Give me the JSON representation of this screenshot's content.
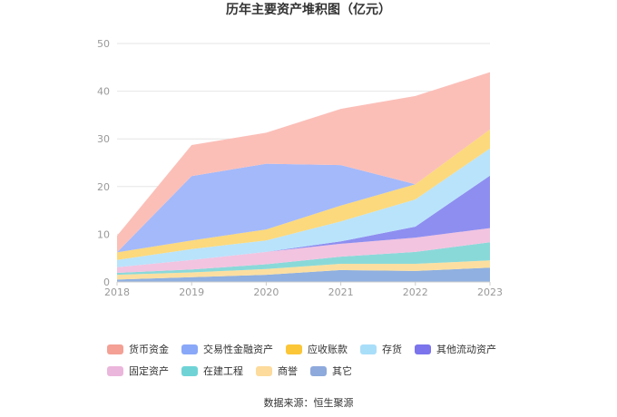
{
  "chart_data": {
    "type": "area",
    "stacked": true,
    "title": "历年主要资产堆积图（亿元）",
    "x": [
      "2018",
      "2019",
      "2020",
      "2021",
      "2022",
      "2023"
    ],
    "y_ticks": [
      "0",
      "10",
      "20",
      "30",
      "40",
      "50"
    ],
    "ylim": [
      0,
      50
    ],
    "grid": true,
    "legend_position": "bottom",
    "series": [
      {
        "name": "其它",
        "color": "#8fb0e0",
        "values": [
          0.5,
          1.0,
          1.5,
          2.5,
          2.3,
          3.0
        ]
      },
      {
        "name": "商誉",
        "color": "#fcdfa0",
        "values": [
          1.0,
          1.0,
          1.2,
          1.3,
          1.5,
          1.5
        ]
      },
      {
        "name": "在建工程",
        "color": "#8ad9d9",
        "values": [
          0.4,
          0.6,
          1.0,
          1.5,
          2.5,
          3.8
        ]
      },
      {
        "name": "固定资产",
        "color": "#f2c4e0",
        "values": [
          1.2,
          2.0,
          2.6,
          2.7,
          3.0,
          3.0
        ]
      },
      {
        "name": "其他流动资产",
        "color": "#8e8ef0",
        "values": [
          0.0,
          0.0,
          0.0,
          0.5,
          2.3,
          11.0
        ]
      },
      {
        "name": "存货",
        "color": "#b9e3fb",
        "values": [
          1.5,
          2.3,
          2.4,
          4.2,
          5.7,
          5.7
        ]
      },
      {
        "name": "应收账款",
        "color": "#fcd97c",
        "values": [
          1.6,
          1.8,
          2.3,
          3.3,
          3.2,
          4.0
        ]
      },
      {
        "name": "交易性金融资产",
        "color": "#a3b9fa",
        "values": [
          0.0,
          13.5,
          13.8,
          8.5,
          0.0,
          0.0
        ]
      },
      {
        "name": "货币资金",
        "color": "#fbbfb8",
        "values": [
          3.5,
          6.5,
          6.5,
          11.8,
          18.5,
          12.0
        ]
      }
    ]
  },
  "legend": [
    {
      "label": "货币资金",
      "color": "#f4a095"
    },
    {
      "label": "交易性金融资产",
      "color": "#8aa8f8"
    },
    {
      "label": "应收账款",
      "color": "#fbc638"
    },
    {
      "label": "存货",
      "color": "#a9def9"
    },
    {
      "label": "其他流动资产",
      "color": "#7b74ec"
    },
    {
      "label": "固定资产",
      "color": "#ebb6db"
    },
    {
      "label": "在建工程",
      "color": "#6fd3d6"
    },
    {
      "label": "商誉",
      "color": "#fddb9c"
    },
    {
      "label": "其它",
      "color": "#8ea9dc"
    }
  ],
  "source": "数据来源：恒生聚源"
}
